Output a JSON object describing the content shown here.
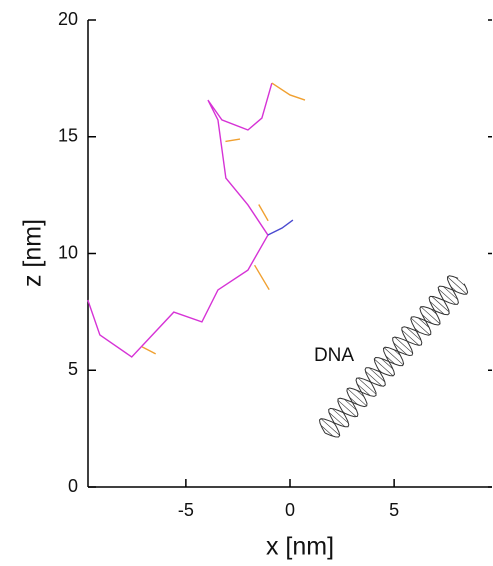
{
  "chart_data": {
    "type": "line",
    "xlabel": "x [nm]",
    "ylabel": "z [nm]",
    "annotation": "DNA",
    "xlim": [
      -9.7,
      9.7
    ],
    "ylim": [
      0,
      20
    ],
    "xticks": [
      -5,
      0,
      5
    ],
    "yticks": [
      0,
      5,
      10,
      15,
      20
    ],
    "series": [
      {
        "color": "#d633d6",
        "x": [
          -9.71,
          -9.13,
          -7.6,
          -6.83,
          -5.58,
          -4.23,
          -3.46,
          -2.02,
          -1.06,
          -2.02,
          -3.08,
          -3.46,
          -3.94,
          -3.27,
          -2.02,
          -1.35,
          -0.87
        ],
        "y": [
          8.01,
          6.51,
          5.57,
          6.3,
          7.49,
          7.07,
          8.44,
          9.29,
          10.79,
          12.08,
          13.23,
          15.72,
          16.57,
          15.72,
          15.29,
          15.8,
          17.3
        ]
      },
      {
        "color": "#f0a030",
        "x": [
          -0.87,
          0,
          0.72,
          null,
          -7.1,
          -6.45,
          null,
          -3.1,
          -2.4,
          null,
          -1.5,
          -1.05,
          null,
          -1.7,
          -1.0
        ],
        "y": [
          17.3,
          16.79,
          16.57,
          null,
          6.0,
          5.7,
          null,
          14.8,
          14.9,
          null,
          12.1,
          11.4,
          null,
          9.5,
          8.45
        ]
      },
      {
        "color": "#4a4ad0",
        "x": [
          -1.06,
          -0.38,
          0.14
        ],
        "y": [
          10.79,
          11.09,
          11.43
        ]
      }
    ]
  }
}
